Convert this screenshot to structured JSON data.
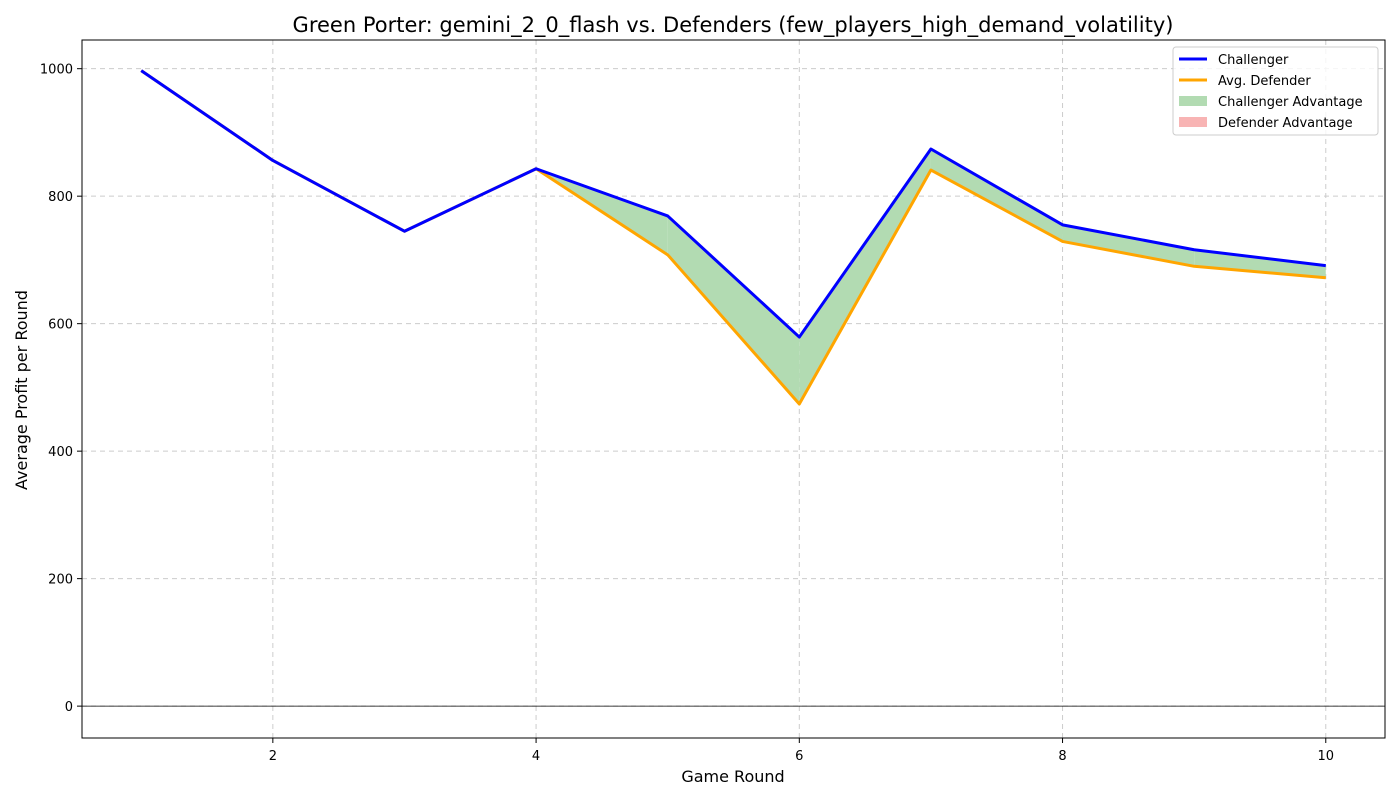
{
  "chart_data": {
    "type": "line",
    "title": "Green Porter: gemini_2_0_flash vs. Defenders (few_players_high_demand_volatility)",
    "xlabel": "Game Round",
    "ylabel": "Average Profit per Round",
    "x": [
      1,
      2,
      3,
      4,
      5,
      6,
      7,
      8,
      9,
      10
    ],
    "xlim": [
      0.55,
      10.45
    ],
    "ylim": [
      -50,
      1045
    ],
    "xticks": [
      2,
      4,
      6,
      8,
      10
    ],
    "yticks": [
      0,
      200,
      400,
      600,
      800,
      1000
    ],
    "grid": true,
    "zero_line": true,
    "series": [
      {
        "name": "Challenger",
        "color": "#0000ff",
        "values": [
          997,
          856,
          745,
          843,
          769,
          579,
          874,
          755,
          716,
          691
        ]
      },
      {
        "name": "Avg. Defender",
        "color": "#ffa500",
        "values": [
          997,
          856,
          745,
          843,
          708,
          474,
          841,
          729,
          690,
          672
        ]
      }
    ],
    "fills": [
      {
        "name": "Challenger Advantage",
        "color": "#b2dbb2"
      },
      {
        "name": "Defender Advantage",
        "color": "#f8b4b4"
      }
    ],
    "legend_position": "top-right"
  }
}
